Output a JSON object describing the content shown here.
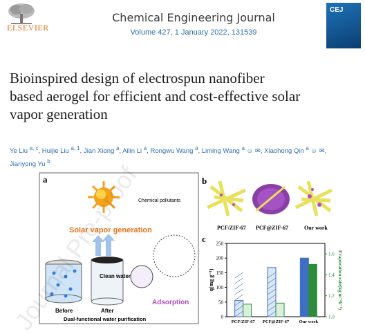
{
  "header": {
    "publisher": "ELSEVIER",
    "journal_name": "Chemical Engineering Journal",
    "journal_meta": "Volume 427, 1 January 2022, 131539",
    "cover_title": "CEJ"
  },
  "article": {
    "title_lines": [
      "Bioinspired design of electrospun nanofiber",
      "based aerogel for efficient and cost-effective solar",
      "vapor generation"
    ],
    "authors": [
      {
        "name": "Ye Liu",
        "sup": "a, c"
      },
      {
        "name": "Huijie Liu",
        "sup": "a, 1"
      },
      {
        "name": "Jian Xiong",
        "sup": "a"
      },
      {
        "name": "Ailin Li",
        "sup": "a"
      },
      {
        "name": "Rongwu Wang",
        "sup": "a"
      },
      {
        "name": "Liming Wang",
        "sup": "a"
      },
      {
        "name": "Xiaohong Qin",
        "sup": "a"
      },
      {
        "name": "Jianyong Yu",
        "sup": "b"
      }
    ]
  },
  "figure": {
    "panel_a_label": "a",
    "panel_b_label": "b",
    "panel_c_label": "c",
    "chemical_pollutants": "Chemical pollutants",
    "solar_vapor_generation": "Solar vapor generation",
    "clean_water": "Clean water",
    "before": "Before",
    "after": "After",
    "adsorption": "Adsorption",
    "caption": "Dual-functional water purification",
    "b_labels": [
      "PCF/ZIF-67",
      "PCF@ZIF-67",
      "Our work"
    ],
    "watermark": "Journal Pre-proof",
    "colors": {
      "sun": "#f7a21b",
      "solar_text": "#e8741e",
      "adsorption_text": "#b04cc4",
      "bar_blue": "#3e6fc4",
      "bar_green": "#2e8b3e"
    }
  },
  "chart_data": {
    "type": "bar",
    "categories": [
      "PCF/ZIF-67",
      "PCF@ZIF-67",
      "Our work"
    ],
    "series": [
      {
        "name": "q",
        "values": [
          55,
          168,
          200
        ]
      },
      {
        "name": "Evaporation rate",
        "values": [
          1.12,
          1.13,
          1.5
        ]
      }
    ],
    "ylabel": "q(mg g⁻¹)",
    "y2label": "Evaporation rate(kg m⁻²h⁻¹)",
    "ylim": [
      0,
      250
    ],
    "y2lim": [
      1.0,
      1.7
    ],
    "yticks": [
      0,
      50,
      100,
      150,
      200,
      250
    ],
    "y2ticks": [
      1.0,
      1.2,
      1.4,
      1.6
    ]
  }
}
